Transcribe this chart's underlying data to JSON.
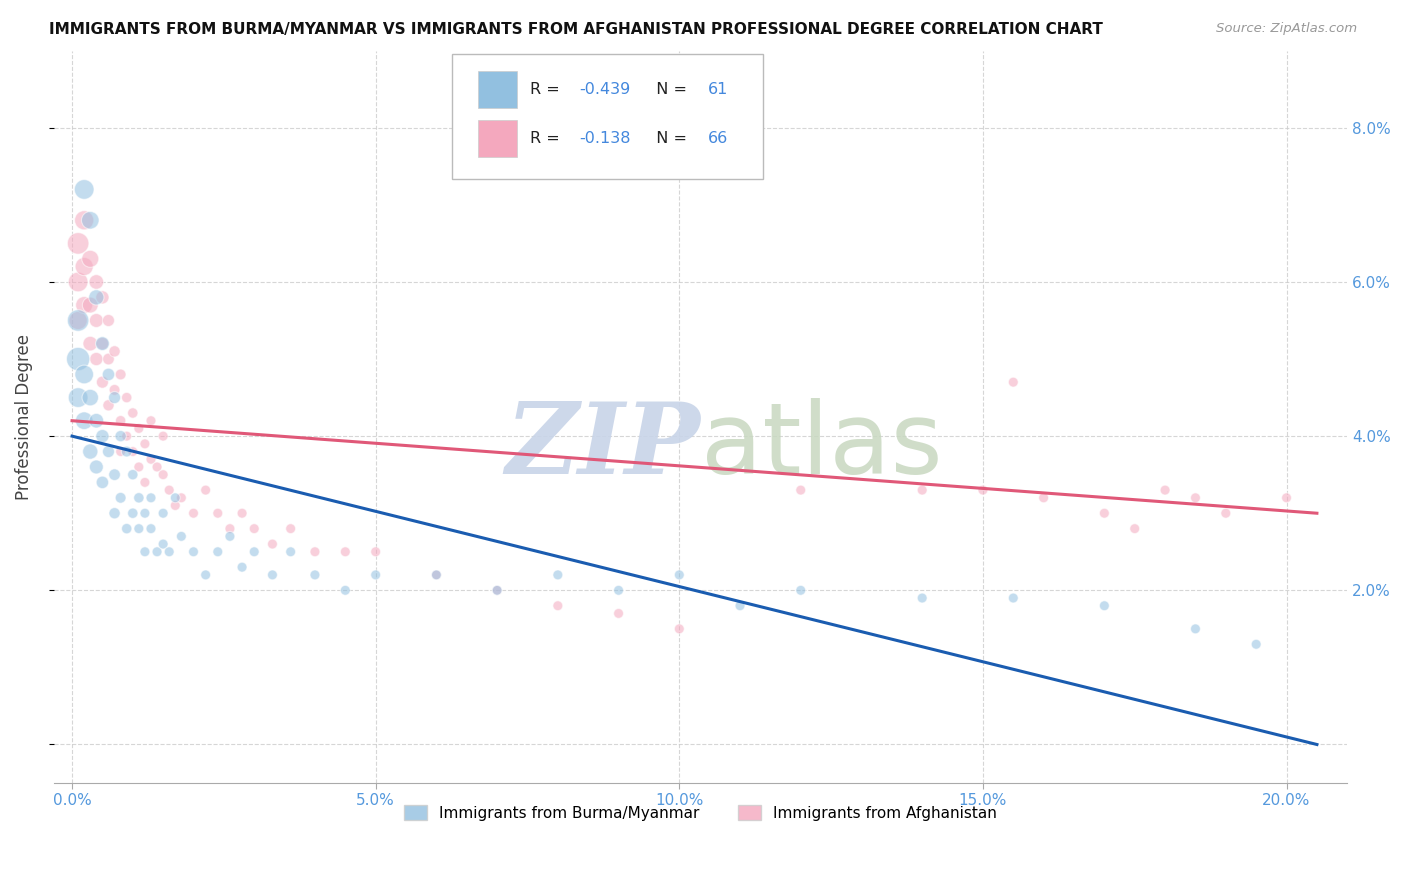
{
  "title": "IMMIGRANTS FROM BURMA/MYANMAR VS IMMIGRANTS FROM AFGHANISTAN PROFESSIONAL DEGREE CORRELATION CHART",
  "source": "Source: ZipAtlas.com",
  "ylabel": "Professional Degree",
  "x_ticks": [
    0.0,
    0.05,
    0.1,
    0.15,
    0.2
  ],
  "x_tick_labels": [
    "0.0%",
    "5.0%",
    "10.0%",
    "15.0%",
    "20.0%"
  ],
  "y_ticks": [
    0.0,
    0.02,
    0.04,
    0.06,
    0.08
  ],
  "y_tick_labels_right": [
    "",
    "2.0%",
    "4.0%",
    "6.0%",
    "8.0%"
  ],
  "xlim": [
    -0.003,
    0.21
  ],
  "ylim": [
    -0.005,
    0.09
  ],
  "blue_R": -0.439,
  "blue_N": 61,
  "pink_R": -0.138,
  "pink_N": 66,
  "blue_label": "Immigrants from Burma/Myanmar",
  "pink_label": "Immigrants from Afghanistan",
  "blue_scatter_color": "#92c0e0",
  "pink_scatter_color": "#f4a8be",
  "blue_line_color": "#1a5cb0",
  "pink_line_color": "#e05878",
  "legend_value_color": "#4488dd",
  "background_color": "#ffffff",
  "grid_color": "#cccccc",
  "axis_tick_color": "#5599dd",
  "blue_scatter_x": [
    0.001,
    0.001,
    0.001,
    0.002,
    0.002,
    0.002,
    0.003,
    0.003,
    0.003,
    0.004,
    0.004,
    0.004,
    0.005,
    0.005,
    0.005,
    0.006,
    0.006,
    0.007,
    0.007,
    0.007,
    0.008,
    0.008,
    0.009,
    0.009,
    0.01,
    0.01,
    0.011,
    0.011,
    0.012,
    0.012,
    0.013,
    0.013,
    0.014,
    0.015,
    0.015,
    0.016,
    0.017,
    0.018,
    0.02,
    0.022,
    0.024,
    0.026,
    0.028,
    0.03,
    0.033,
    0.036,
    0.04,
    0.045,
    0.05,
    0.06,
    0.07,
    0.08,
    0.09,
    0.1,
    0.11,
    0.12,
    0.14,
    0.155,
    0.17,
    0.185,
    0.195
  ],
  "blue_scatter_y": [
    0.05,
    0.055,
    0.045,
    0.072,
    0.048,
    0.042,
    0.068,
    0.045,
    0.038,
    0.058,
    0.042,
    0.036,
    0.052,
    0.04,
    0.034,
    0.048,
    0.038,
    0.045,
    0.035,
    0.03,
    0.04,
    0.032,
    0.038,
    0.028,
    0.035,
    0.03,
    0.032,
    0.028,
    0.03,
    0.025,
    0.028,
    0.032,
    0.025,
    0.03,
    0.026,
    0.025,
    0.032,
    0.027,
    0.025,
    0.022,
    0.025,
    0.027,
    0.023,
    0.025,
    0.022,
    0.025,
    0.022,
    0.02,
    0.022,
    0.022,
    0.02,
    0.022,
    0.02,
    0.022,
    0.018,
    0.02,
    0.019,
    0.019,
    0.018,
    0.015,
    0.013
  ],
  "blue_scatter_sizes": [
    280,
    240,
    200,
    200,
    180,
    160,
    160,
    140,
    120,
    120,
    110,
    100,
    100,
    90,
    80,
    80,
    75,
    75,
    70,
    65,
    65,
    60,
    60,
    55,
    55,
    55,
    55,
    50,
    50,
    50,
    50,
    50,
    50,
    50,
    50,
    50,
    50,
    50,
    50,
    50,
    50,
    50,
    50,
    50,
    50,
    50,
    50,
    50,
    50,
    50,
    50,
    50,
    50,
    50,
    50,
    50,
    50,
    50,
    50,
    50,
    50
  ],
  "pink_scatter_x": [
    0.001,
    0.001,
    0.001,
    0.002,
    0.002,
    0.002,
    0.003,
    0.003,
    0.003,
    0.004,
    0.004,
    0.004,
    0.005,
    0.005,
    0.005,
    0.006,
    0.006,
    0.006,
    0.007,
    0.007,
    0.008,
    0.008,
    0.008,
    0.009,
    0.009,
    0.01,
    0.01,
    0.011,
    0.011,
    0.012,
    0.012,
    0.013,
    0.013,
    0.014,
    0.015,
    0.015,
    0.016,
    0.017,
    0.018,
    0.02,
    0.022,
    0.024,
    0.026,
    0.028,
    0.03,
    0.033,
    0.036,
    0.04,
    0.045,
    0.05,
    0.06,
    0.07,
    0.08,
    0.09,
    0.1,
    0.12,
    0.14,
    0.15,
    0.155,
    0.16,
    0.17,
    0.175,
    0.18,
    0.185,
    0.19,
    0.2
  ],
  "pink_scatter_y": [
    0.065,
    0.06,
    0.055,
    0.068,
    0.062,
    0.057,
    0.063,
    0.057,
    0.052,
    0.06,
    0.055,
    0.05,
    0.058,
    0.052,
    0.047,
    0.055,
    0.05,
    0.044,
    0.051,
    0.046,
    0.048,
    0.042,
    0.038,
    0.045,
    0.04,
    0.043,
    0.038,
    0.041,
    0.036,
    0.039,
    0.034,
    0.037,
    0.042,
    0.036,
    0.035,
    0.04,
    0.033,
    0.031,
    0.032,
    0.03,
    0.033,
    0.03,
    0.028,
    0.03,
    0.028,
    0.026,
    0.028,
    0.025,
    0.025,
    0.025,
    0.022,
    0.02,
    0.018,
    0.017,
    0.015,
    0.033,
    0.033,
    0.033,
    0.047,
    0.032,
    0.03,
    0.028,
    0.033,
    0.032,
    0.03,
    0.032
  ],
  "pink_scatter_sizes": [
    240,
    200,
    170,
    190,
    170,
    150,
    150,
    130,
    110,
    110,
    100,
    90,
    90,
    80,
    75,
    75,
    70,
    65,
    65,
    60,
    60,
    55,
    50,
    55,
    50,
    55,
    50,
    50,
    50,
    50,
    50,
    50,
    50,
    50,
    50,
    50,
    50,
    50,
    50,
    50,
    50,
    50,
    50,
    50,
    50,
    50,
    50,
    50,
    50,
    50,
    50,
    50,
    50,
    50,
    50,
    50,
    50,
    50,
    50,
    50,
    50,
    50,
    50,
    50,
    50,
    50
  ],
  "blue_trend_x0": 0.0,
  "blue_trend_y0": 0.04,
  "blue_trend_x1": 0.205,
  "blue_trend_y1": 0.0,
  "pink_trend_x0": 0.0,
  "pink_trend_y0": 0.042,
  "pink_trend_x1": 0.205,
  "pink_trend_y1": 0.03
}
